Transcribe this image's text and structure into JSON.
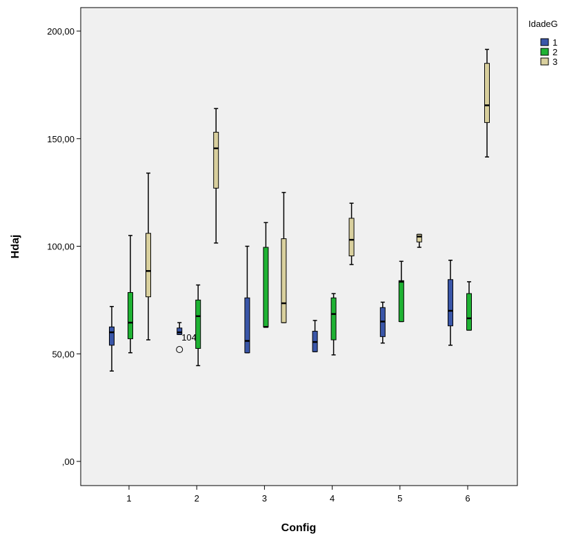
{
  "chart_data": {
    "type": "boxplot",
    "xlabel": "Config",
    "ylabel": "Hdaj",
    "categories": [
      "1",
      "2",
      "3",
      "4",
      "5",
      "6"
    ],
    "ylim": [
      -10,
      215
    ],
    "yticks": [
      0,
      50,
      100,
      150,
      200
    ],
    "ytick_labels": [
      ",00",
      "50,00",
      "100,00",
      "150,00",
      "200,00"
    ],
    "grid": false,
    "legend": {
      "title": "IdadeG",
      "placement": "right"
    },
    "series": [
      {
        "name": "1",
        "color": "#3a56a8",
        "boxes": [
          {
            "min": 42,
            "q1": 54,
            "median": 60,
            "q3": 62.5,
            "max": 72
          },
          {
            "min": 59,
            "q1": 59,
            "median": 60,
            "q3": 62,
            "max": 64.5,
            "outliers": [
              {
                "value": 52,
                "label": "104"
              }
            ]
          },
          {
            "min": 50.5,
            "q1": 50.5,
            "median": 56,
            "q3": 76,
            "max": 100
          },
          {
            "min": 51,
            "q1": 51,
            "median": 55.5,
            "q3": 60.5,
            "max": 65.5
          },
          {
            "min": 55,
            "q1": 58,
            "median": 65,
            "q3": 71.5,
            "max": 74
          },
          {
            "min": 54,
            "q1": 63,
            "median": 70,
            "q3": 84.5,
            "max": 93.5
          }
        ]
      },
      {
        "name": "2",
        "color": "#1fb233",
        "boxes": [
          {
            "min": 50.5,
            "q1": 57,
            "median": 64.5,
            "q3": 78.5,
            "max": 105
          },
          {
            "min": 44.5,
            "q1": 52.5,
            "median": 67.5,
            "q3": 75,
            "max": 82
          },
          {
            "min": 62.5,
            "q1": 62.5,
            "median": 62.5,
            "q3": 99.5,
            "max": 111
          },
          {
            "min": 49.5,
            "q1": 56.5,
            "median": 68.5,
            "q3": 76,
            "max": 78
          },
          {
            "min": 65,
            "q1": 65,
            "median": 83.5,
            "q3": 84,
            "max": 93
          },
          {
            "min": 61,
            "q1": 61,
            "median": 66.5,
            "q3": 78,
            "max": 83.5
          }
        ]
      },
      {
        "name": "3",
        "color": "#d9d09e",
        "boxes": [
          {
            "min": 56.5,
            "q1": 76.5,
            "median": 88.5,
            "q3": 106,
            "max": 134
          },
          {
            "min": 101.5,
            "q1": 127,
            "median": 145.5,
            "q3": 153,
            "max": 164
          },
          {
            "min": 64.5,
            "q1": 64.5,
            "median": 73.5,
            "q3": 103.5,
            "max": 125
          },
          {
            "min": 91.5,
            "q1": 95.5,
            "median": 103,
            "q3": 113,
            "max": 120
          },
          {
            "min": 99.5,
            "q1": 102,
            "median": 104.5,
            "q3": 105.5,
            "max": 105.5
          },
          {
            "min": 141.5,
            "q1": 157.5,
            "median": 165.5,
            "q3": 185,
            "max": 191.5
          }
        ]
      }
    ]
  }
}
